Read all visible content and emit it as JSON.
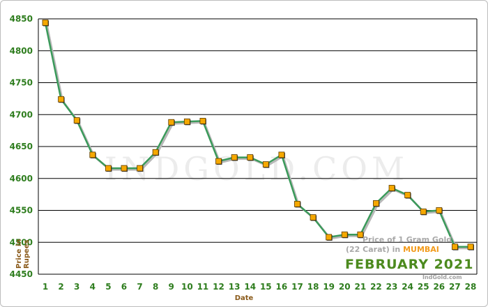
{
  "chart_data": {
    "type": "line",
    "xlabel": "Date",
    "ylabel": "Price in Rupees",
    "ylim": [
      4450,
      4850
    ],
    "yticks": [
      4450,
      4500,
      4550,
      4600,
      4650,
      4700,
      4750,
      4800,
      4850
    ],
    "grid": true,
    "x": [
      1,
      2,
      3,
      4,
      5,
      6,
      7,
      8,
      9,
      10,
      11,
      12,
      13,
      14,
      15,
      16,
      17,
      18,
      19,
      20,
      21,
      22,
      23,
      24,
      25,
      26,
      27,
      28
    ],
    "series": [
      {
        "values": [
          4844,
          4724,
          4691,
          4637,
          4616,
          4616,
          4616,
          4641,
          4688,
          4689,
          4690,
          4627,
          4633,
          4633,
          4622,
          4637,
          4560,
          4539,
          4508,
          4512,
          4512,
          4561,
          4585,
          4574,
          4548,
          4550,
          4493,
          4493
        ],
        "line_color": "#3a9a5a",
        "marker_color": "#f5a800"
      }
    ],
    "watermark": "INDGOLD.COM",
    "caption": {
      "line1": "Price of 1 Gram Gold",
      "line2_prefix": "(22 Carat) in ",
      "city": "MUMBAI",
      "month_year": "FEBRUARY 2021",
      "site": "IndGold.com"
    }
  }
}
